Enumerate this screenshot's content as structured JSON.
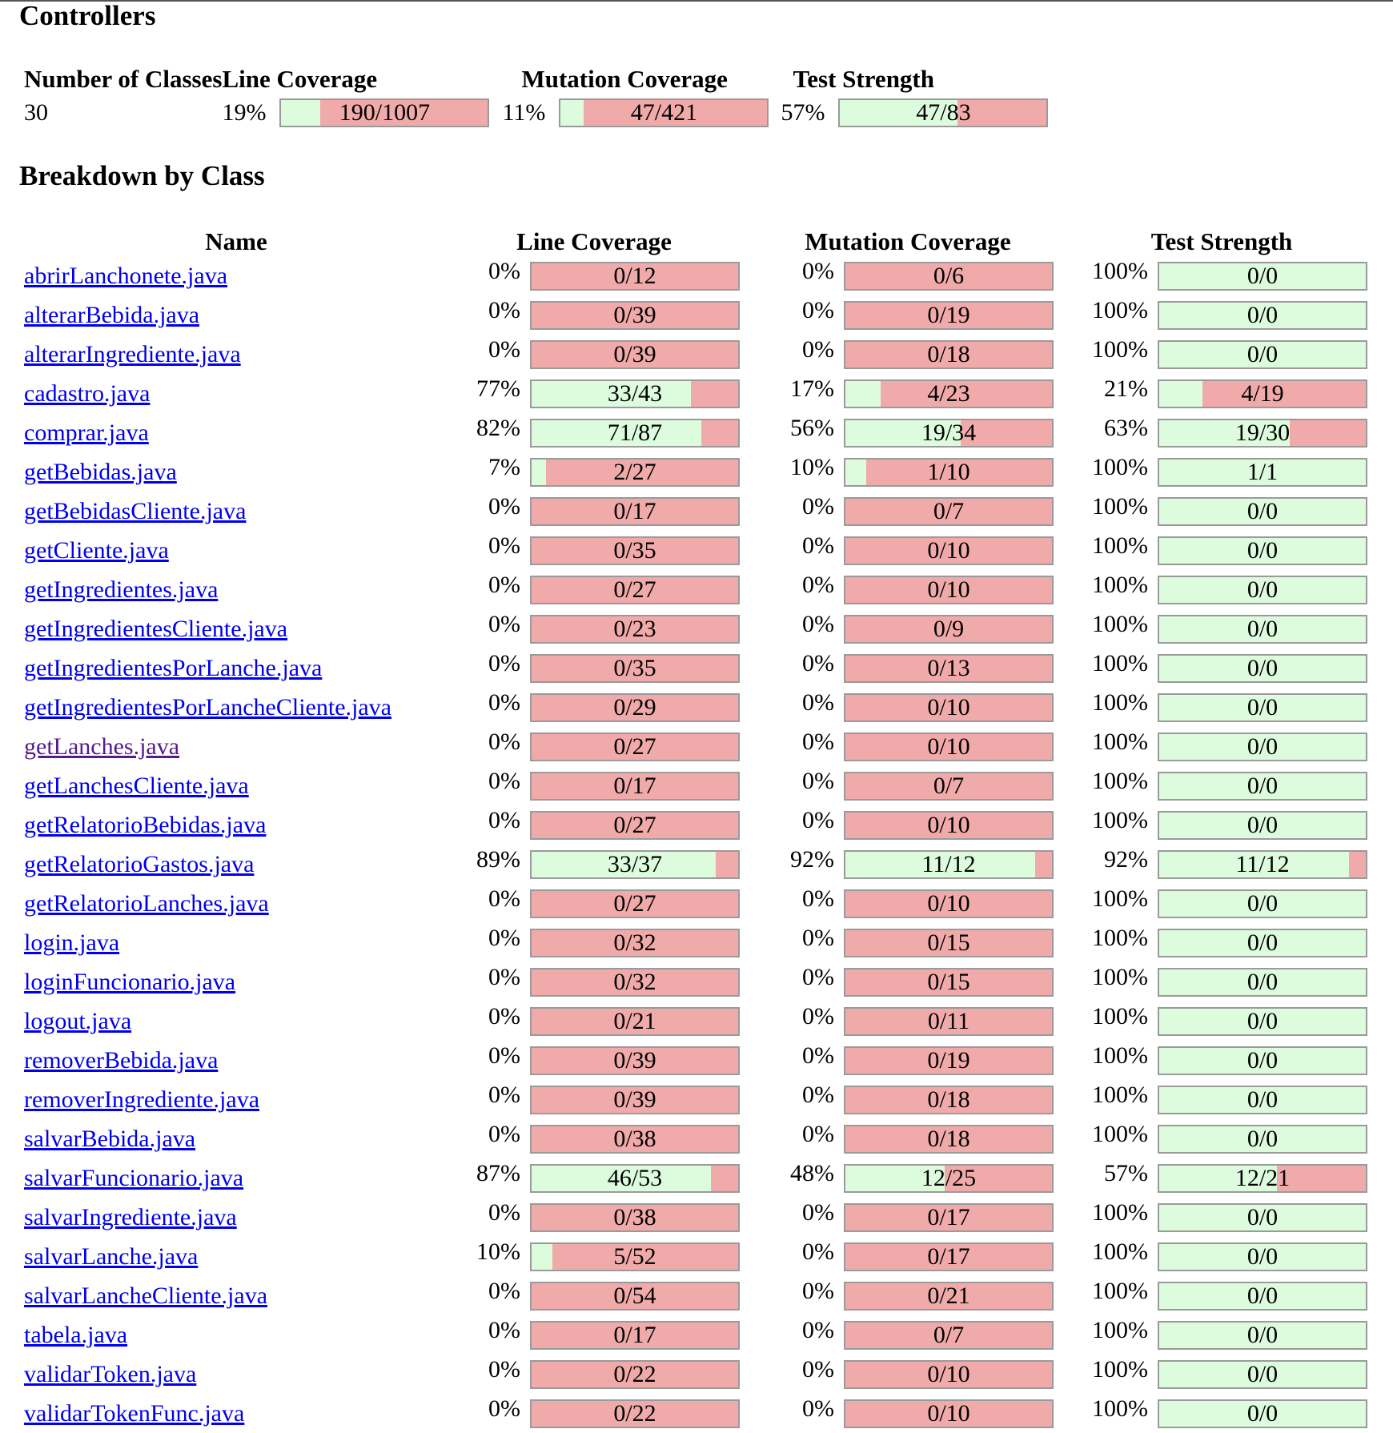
{
  "controllers": {
    "heading": "Controllers",
    "headers": {
      "classes": "Number of Classes",
      "line": "Line Coverage",
      "mutation": "Mutation Coverage",
      "strength": "Test Strength"
    },
    "classes": "30",
    "line": {
      "pct": "19%",
      "text": "190/1007",
      "fraction": 0.19
    },
    "mutation": {
      "pct": "11%",
      "text": "47/421",
      "fraction": 0.11
    },
    "strength": {
      "pct": "57%",
      "text": "47/83",
      "fraction": 0.57
    }
  },
  "breakdown": {
    "heading": "Breakdown by Class",
    "headers": {
      "name": "Name",
      "line": "Line Coverage",
      "mutation": "Mutation Coverage",
      "strength": "Test Strength"
    },
    "rows": [
      {
        "name": "abrirLanchonete.java",
        "lp": "0%",
        "lt": "0/12",
        "lf": 0,
        "mp": "0%",
        "mt": "0/6",
        "mf": 0,
        "sp": "100%",
        "st": "0/0",
        "sf": 1
      },
      {
        "name": "alterarBebida.java",
        "lp": "0%",
        "lt": "0/39",
        "lf": 0,
        "mp": "0%",
        "mt": "0/19",
        "mf": 0,
        "sp": "100%",
        "st": "0/0",
        "sf": 1
      },
      {
        "name": "alterarIngrediente.java",
        "lp": "0%",
        "lt": "0/39",
        "lf": 0,
        "mp": "0%",
        "mt": "0/18",
        "mf": 0,
        "sp": "100%",
        "st": "0/0",
        "sf": 1
      },
      {
        "name": "cadastro.java",
        "lp": "77%",
        "lt": "33/43",
        "lf": 0.77,
        "mp": "17%",
        "mt": "4/23",
        "mf": 0.17,
        "sp": "21%",
        "st": "4/19",
        "sf": 0.21
      },
      {
        "name": "comprar.java",
        "lp": "82%",
        "lt": "71/87",
        "lf": 0.82,
        "mp": "56%",
        "mt": "19/34",
        "mf": 0.56,
        "sp": "63%",
        "st": "19/30",
        "sf": 0.63
      },
      {
        "name": "getBebidas.java",
        "lp": "7%",
        "lt": "2/27",
        "lf": 0.07,
        "mp": "10%",
        "mt": "1/10",
        "mf": 0.1,
        "sp": "100%",
        "st": "1/1",
        "sf": 1
      },
      {
        "name": "getBebidasCliente.java",
        "lp": "0%",
        "lt": "0/17",
        "lf": 0,
        "mp": "0%",
        "mt": "0/7",
        "mf": 0,
        "sp": "100%",
        "st": "0/0",
        "sf": 1
      },
      {
        "name": "getCliente.java",
        "lp": "0%",
        "lt": "0/35",
        "lf": 0,
        "mp": "0%",
        "mt": "0/10",
        "mf": 0,
        "sp": "100%",
        "st": "0/0",
        "sf": 1
      },
      {
        "name": "getIngredientes.java",
        "lp": "0%",
        "lt": "0/27",
        "lf": 0,
        "mp": "0%",
        "mt": "0/10",
        "mf": 0,
        "sp": "100%",
        "st": "0/0",
        "sf": 1
      },
      {
        "name": "getIngredientesCliente.java",
        "lp": "0%",
        "lt": "0/23",
        "lf": 0,
        "mp": "0%",
        "mt": "0/9",
        "mf": 0,
        "sp": "100%",
        "st": "0/0",
        "sf": 1
      },
      {
        "name": "getIngredientesPorLanche.java",
        "lp": "0%",
        "lt": "0/35",
        "lf": 0,
        "mp": "0%",
        "mt": "0/13",
        "mf": 0,
        "sp": "100%",
        "st": "0/0",
        "sf": 1
      },
      {
        "name": "getIngredientesPorLancheCliente.java",
        "lp": "0%",
        "lt": "0/29",
        "lf": 0,
        "mp": "0%",
        "mt": "0/10",
        "mf": 0,
        "sp": "100%",
        "st": "0/0",
        "sf": 1
      },
      {
        "name": "getLanches.java",
        "lp": "0%",
        "lt": "0/27",
        "lf": 0,
        "mp": "0%",
        "mt": "0/10",
        "mf": 0,
        "sp": "100%",
        "st": "0/0",
        "sf": 1,
        "visited": true
      },
      {
        "name": "getLanchesCliente.java",
        "lp": "0%",
        "lt": "0/17",
        "lf": 0,
        "mp": "0%",
        "mt": "0/7",
        "mf": 0,
        "sp": "100%",
        "st": "0/0",
        "sf": 1
      },
      {
        "name": "getRelatorioBebidas.java",
        "lp": "0%",
        "lt": "0/27",
        "lf": 0,
        "mp": "0%",
        "mt": "0/10",
        "mf": 0,
        "sp": "100%",
        "st": "0/0",
        "sf": 1
      },
      {
        "name": "getRelatorioGastos.java",
        "lp": "89%",
        "lt": "33/37",
        "lf": 0.89,
        "mp": "92%",
        "mt": "11/12",
        "mf": 0.92,
        "sp": "92%",
        "st": "11/12",
        "sf": 0.92
      },
      {
        "name": "getRelatorioLanches.java",
        "lp": "0%",
        "lt": "0/27",
        "lf": 0,
        "mp": "0%",
        "mt": "0/10",
        "mf": 0,
        "sp": "100%",
        "st": "0/0",
        "sf": 1
      },
      {
        "name": "login.java",
        "lp": "0%",
        "lt": "0/32",
        "lf": 0,
        "mp": "0%",
        "mt": "0/15",
        "mf": 0,
        "sp": "100%",
        "st": "0/0",
        "sf": 1
      },
      {
        "name": "loginFuncionario.java",
        "lp": "0%",
        "lt": "0/32",
        "lf": 0,
        "mp": "0%",
        "mt": "0/15",
        "mf": 0,
        "sp": "100%",
        "st": "0/0",
        "sf": 1
      },
      {
        "name": "logout.java",
        "lp": "0%",
        "lt": "0/21",
        "lf": 0,
        "mp": "0%",
        "mt": "0/11",
        "mf": 0,
        "sp": "100%",
        "st": "0/0",
        "sf": 1
      },
      {
        "name": "removerBebida.java",
        "lp": "0%",
        "lt": "0/39",
        "lf": 0,
        "mp": "0%",
        "mt": "0/19",
        "mf": 0,
        "sp": "100%",
        "st": "0/0",
        "sf": 1
      },
      {
        "name": "removerIngrediente.java",
        "lp": "0%",
        "lt": "0/39",
        "lf": 0,
        "mp": "0%",
        "mt": "0/18",
        "mf": 0,
        "sp": "100%",
        "st": "0/0",
        "sf": 1
      },
      {
        "name": "salvarBebida.java",
        "lp": "0%",
        "lt": "0/38",
        "lf": 0,
        "mp": "0%",
        "mt": "0/18",
        "mf": 0,
        "sp": "100%",
        "st": "0/0",
        "sf": 1
      },
      {
        "name": "salvarFuncionario.java",
        "lp": "87%",
        "lt": "46/53",
        "lf": 0.87,
        "mp": "48%",
        "mt": "12/25",
        "mf": 0.48,
        "sp": "57%",
        "st": "12/21",
        "sf": 0.57
      },
      {
        "name": "salvarIngrediente.java",
        "lp": "0%",
        "lt": "0/38",
        "lf": 0,
        "mp": "0%",
        "mt": "0/17",
        "mf": 0,
        "sp": "100%",
        "st": "0/0",
        "sf": 1
      },
      {
        "name": "salvarLanche.java",
        "lp": "10%",
        "lt": "5/52",
        "lf": 0.1,
        "mp": "0%",
        "mt": "0/17",
        "mf": 0,
        "sp": "100%",
        "st": "0/0",
        "sf": 1
      },
      {
        "name": "salvarLancheCliente.java",
        "lp": "0%",
        "lt": "0/54",
        "lf": 0,
        "mp": "0%",
        "mt": "0/21",
        "mf": 0,
        "sp": "100%",
        "st": "0/0",
        "sf": 1
      },
      {
        "name": "tabela.java",
        "lp": "0%",
        "lt": "0/17",
        "lf": 0,
        "mp": "0%",
        "mt": "0/7",
        "mf": 0,
        "sp": "100%",
        "st": "0/0",
        "sf": 1
      },
      {
        "name": "validarToken.java",
        "lp": "0%",
        "lt": "0/22",
        "lf": 0,
        "mp": "0%",
        "mt": "0/10",
        "mf": 0,
        "sp": "100%",
        "st": "0/0",
        "sf": 1
      },
      {
        "name": "validarTokenFunc.java",
        "lp": "0%",
        "lt": "0/22",
        "lf": 0,
        "mp": "0%",
        "mt": "0/10",
        "mf": 0,
        "sp": "100%",
        "st": "0/0",
        "sf": 1
      }
    ]
  },
  "colors": {
    "covered": "#ddfcdd",
    "uncovered": "#f1aaaa",
    "link": "#0000ee",
    "visited_link": "#551a8b"
  }
}
